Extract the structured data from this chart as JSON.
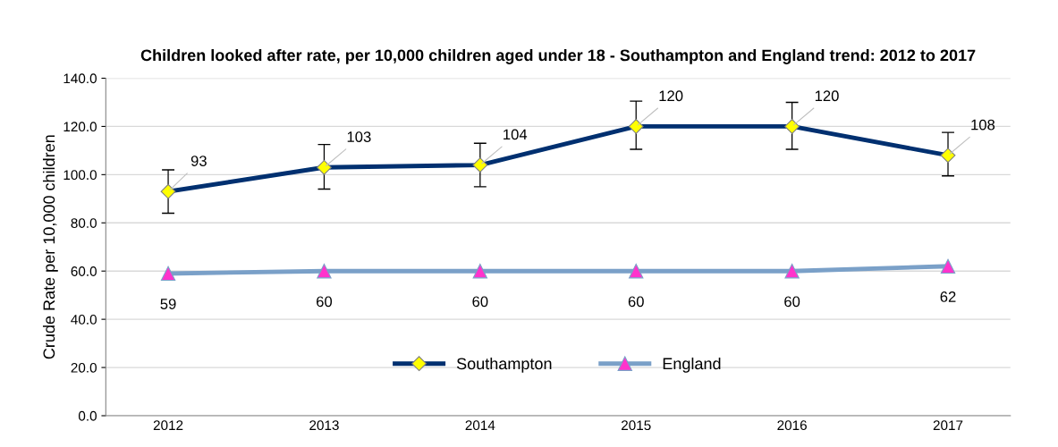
{
  "chart_data": {
    "type": "line",
    "title": "Children looked after rate, per 10,000 children aged under 18 - Southampton and England trend: 2012 to 2017",
    "ylabel": "Crude Rate per 10,000 children",
    "categories": [
      "2012",
      "2013",
      "2014",
      "2015",
      "2016",
      "2017"
    ],
    "series": [
      {
        "name": "Southampton",
        "color": "#003070",
        "marker": "diamond",
        "values": [
          93,
          103,
          104,
          120,
          120,
          108
        ],
        "errors": [
          [
            84,
            102
          ],
          [
            94,
            112.5
          ],
          [
            95,
            113
          ],
          [
            110.5,
            130.5
          ],
          [
            110.5,
            130
          ],
          [
            99.5,
            117.5
          ]
        ]
      },
      {
        "name": "England",
        "color": "#7aa0c8",
        "marker": "triangle",
        "values": [
          59,
          60,
          60,
          60,
          60,
          62
        ]
      }
    ],
    "ylim": [
      0,
      140
    ],
    "yticks": [
      {
        "value": 0,
        "label": "0.0"
      },
      {
        "value": 20,
        "label": "20.0"
      },
      {
        "value": 40,
        "label": "40.0"
      },
      {
        "value": 60,
        "label": "60.0"
      },
      {
        "value": 80,
        "label": "80.0"
      },
      {
        "value": 100,
        "label": "100.0"
      },
      {
        "value": 120,
        "label": "120.0"
      },
      {
        "value": 140,
        "label": "140.0"
      }
    ],
    "grid": "y",
    "legend": "bottom",
    "data_labels": true,
    "line_style": "solid"
  }
}
